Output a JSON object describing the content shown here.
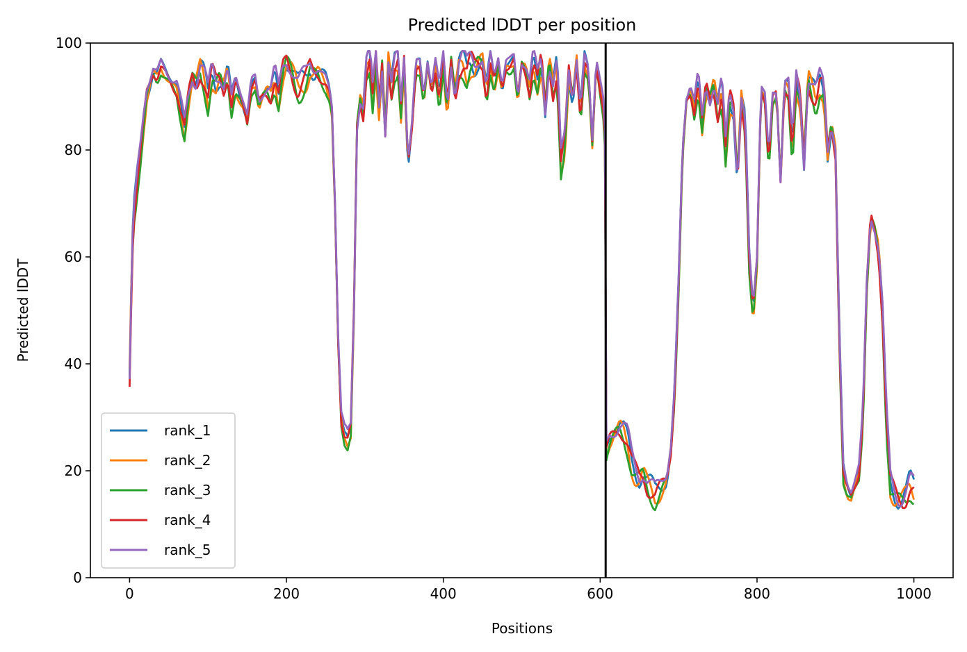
{
  "chart_data": {
    "type": "line",
    "title": "Predicted lDDT per position",
    "xlabel": "Positions",
    "ylabel": "Predicted lDDT",
    "xlim": [
      -50,
      1050
    ],
    "ylim": [
      0,
      100
    ],
    "xticks": [
      0,
      200,
      400,
      600,
      800,
      1000
    ],
    "yticks": [
      0,
      20,
      40,
      60,
      80,
      100
    ],
    "grid": false,
    "legend_position": "lower-left",
    "chain_break_x": 607,
    "reference_profile": {
      "x": [
        0,
        3,
        5,
        8,
        10,
        14,
        18,
        22,
        26,
        30,
        35,
        40,
        45,
        50,
        55,
        60,
        65,
        70,
        75,
        80,
        85,
        90,
        95,
        100,
        105,
        110,
        115,
        120,
        125,
        130,
        135,
        140,
        145,
        150,
        155,
        160,
        165,
        170,
        175,
        180,
        185,
        190,
        195,
        200,
        205,
        210,
        215,
        220,
        225,
        230,
        235,
        240,
        245,
        250,
        255,
        258,
        262,
        266,
        270,
        274,
        278,
        282,
        286,
        290,
        294,
        298,
        302,
        306,
        310,
        314,
        318,
        322,
        326,
        330,
        334,
        338,
        342,
        346,
        350,
        355,
        360,
        365,
        370,
        375,
        380,
        385,
        390,
        395,
        400,
        405,
        410,
        415,
        420,
        425,
        430,
        435,
        440,
        445,
        450,
        455,
        460,
        465,
        470,
        475,
        480,
        485,
        490,
        495,
        500,
        505,
        510,
        515,
        520,
        525,
        530,
        535,
        540,
        545,
        550,
        555,
        560,
        565,
        570,
        575,
        580,
        585,
        590,
        595,
        600,
        604,
        607,
        608,
        612,
        616,
        620,
        625,
        630,
        635,
        640,
        645,
        650,
        655,
        660,
        665,
        670,
        675,
        680,
        685,
        690,
        695,
        700,
        705,
        710,
        715,
        720,
        725,
        730,
        735,
        740,
        745,
        750,
        755,
        760,
        765,
        770,
        775,
        780,
        785,
        790,
        795,
        800,
        805,
        810,
        815,
        820,
        825,
        830,
        835,
        840,
        845,
        850,
        855,
        860,
        865,
        870,
        875,
        880,
        885,
        890,
        895,
        900,
        905,
        910,
        915,
        920,
        925,
        930,
        935,
        940,
        945,
        950,
        955,
        960,
        965,
        970,
        975,
        980,
        985,
        990,
        995,
        1000
      ],
      "y": [
        38,
        60,
        68,
        72,
        75,
        80,
        86,
        91,
        93,
        95,
        94,
        96,
        95,
        94,
        93,
        92,
        88,
        84,
        90,
        94,
        93,
        96,
        94,
        90,
        95,
        93,
        94,
        92,
        95,
        89,
        93,
        91,
        89,
        86,
        92,
        93,
        89,
        91,
        92,
        91,
        94,
        90,
        95,
        97,
        96,
        94,
        92,
        93,
        94,
        96,
        95,
        95,
        94,
        93,
        91,
        88,
        70,
        45,
        30,
        27,
        26,
        28,
        50,
        85,
        90,
        88,
        96,
        98,
        90,
        97,
        88,
        96,
        84,
        97,
        92,
        96,
        97,
        88,
        97,
        78,
        85,
        96,
        96,
        90,
        97,
        92,
        96,
        90,
        97,
        88,
        97,
        91,
        96,
        97,
        95,
        97,
        96,
        97,
        97,
        91,
        97,
        93,
        97,
        92,
        96,
        96,
        97,
        90,
        97,
        96,
        92,
        97,
        93,
        97,
        88,
        97,
        92,
        96,
        78,
        82,
        95,
        90,
        97,
        87,
        97,
        95,
        82,
        97,
        92,
        88,
        80,
        24,
        26,
        27,
        28,
        29,
        28,
        26,
        22,
        20,
        19,
        20,
        18,
        17,
        16,
        17,
        18,
        19,
        24,
        35,
        55,
        80,
        90,
        92,
        88,
        93,
        85,
        92,
        90,
        93,
        88,
        92,
        80,
        90,
        88,
        75,
        90,
        85,
        60,
        50,
        60,
        92,
        90,
        78,
        90,
        91,
        75,
        93,
        92,
        80,
        93,
        90,
        78,
        94,
        92,
        90,
        93,
        92,
        80,
        85,
        80,
        45,
        20,
        17,
        16,
        18,
        20,
        30,
        55,
        68,
        66,
        62,
        50,
        30,
        18,
        16,
        15,
        15,
        16,
        18,
        17
      ]
    },
    "series": [
      {
        "name": "rank_1",
        "color": "#1f77b4",
        "offset": 0.0
      },
      {
        "name": "rank_2",
        "color": "#ff7f0e",
        "offset": -1.0
      },
      {
        "name": "rank_3",
        "color": "#2ca02c",
        "offset": -1.5
      },
      {
        "name": "rank_4",
        "color": "#d62728",
        "offset": -0.6
      },
      {
        "name": "rank_5",
        "color": "#9467bd",
        "offset": 0.5
      }
    ]
  }
}
